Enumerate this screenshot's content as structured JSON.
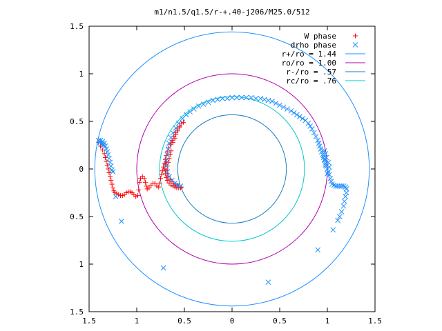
{
  "chart_data": {
    "type": "scatter",
    "title": "m1/n1.5/q1.5/r-+.40-j206/M25.0/512",
    "xlim": [
      -1.5,
      1.5
    ],
    "ylim": [
      -1.5,
      1.5
    ],
    "x_tick_values": [
      -1.5,
      -1,
      -0.5,
      0,
      0.5,
      1,
      1.5
    ],
    "x_tick_labels": [
      "1.5",
      "1",
      "0.5",
      "0",
      "0.5",
      "1",
      "1.5"
    ],
    "y_tick_values": [
      1.5,
      1,
      0.5,
      0,
      -0.5,
      -1,
      -1.5
    ],
    "y_tick_labels": [
      "1.5",
      "1",
      "0.5",
      "0",
      "0.5",
      "1",
      "1.5"
    ],
    "grid": false,
    "legend_position": "top-right",
    "series": [
      {
        "name": "W phase",
        "marker": "plus",
        "color": "#ff0000",
        "points": [
          [
            -1.4,
            0.28
          ],
          [
            -1.38,
            0.24
          ],
          [
            -1.36,
            0.2
          ],
          [
            -1.34,
            0.16
          ],
          [
            -1.33,
            0.12
          ],
          [
            -1.32,
            0.08
          ],
          [
            -1.31,
            0.04
          ],
          [
            -1.3,
            0.0
          ],
          [
            -1.29,
            -0.04
          ],
          [
            -1.28,
            -0.08
          ],
          [
            -1.27,
            -0.12
          ],
          [
            -1.26,
            -0.16
          ],
          [
            -1.25,
            -0.2
          ],
          [
            -1.24,
            -0.23
          ],
          [
            -1.23,
            -0.25
          ],
          [
            -1.21,
            -0.26
          ],
          [
            -1.19,
            -0.27
          ],
          [
            -1.17,
            -0.28
          ],
          [
            -1.15,
            -0.28
          ],
          [
            -1.13,
            -0.27
          ],
          [
            -1.11,
            -0.25
          ],
          [
            -1.09,
            -0.24
          ],
          [
            -1.07,
            -0.24
          ],
          [
            -1.05,
            -0.25
          ],
          [
            -1.03,
            -0.27
          ],
          [
            -1.01,
            -0.29
          ],
          [
            -0.99,
            -0.28
          ],
          [
            -0.98,
            -0.22
          ],
          [
            -0.97,
            -0.14
          ],
          [
            -0.96,
            -0.1
          ],
          [
            -0.94,
            -0.08
          ],
          [
            -0.92,
            -0.1
          ],
          [
            -0.91,
            -0.14
          ],
          [
            -0.9,
            -0.18
          ],
          [
            -0.89,
            -0.21
          ],
          [
            -0.87,
            -0.2
          ],
          [
            -0.85,
            -0.17
          ],
          [
            -0.83,
            -0.15
          ],
          [
            -0.81,
            -0.15
          ],
          [
            -0.79,
            -0.18
          ],
          [
            -0.77,
            -0.19
          ],
          [
            -0.76,
            -0.15
          ],
          [
            -0.75,
            -0.1
          ],
          [
            -0.74,
            -0.06
          ],
          [
            -0.73,
            -0.02
          ],
          [
            -0.72,
            0.02
          ],
          [
            -0.71,
            0.06
          ],
          [
            -0.7,
            0.1
          ],
          [
            -0.69,
            0.14
          ],
          [
            -0.68,
            0.18
          ],
          [
            -0.67,
            0.22
          ],
          [
            -0.65,
            0.26
          ],
          [
            -0.63,
            0.3
          ],
          [
            -0.61,
            0.34
          ],
          [
            -0.59,
            0.38
          ],
          [
            -0.57,
            0.42
          ],
          [
            -0.55,
            0.45
          ],
          [
            -0.53,
            0.48
          ],
          [
            -0.51,
            0.49
          ],
          [
            -0.64,
            0.26
          ],
          [
            -0.62,
            0.28
          ],
          [
            -0.6,
            0.32
          ],
          [
            -0.59,
            0.36
          ],
          [
            -0.57,
            0.4
          ],
          [
            -0.55,
            0.44
          ],
          [
            -0.7,
            -0.02
          ],
          [
            -0.71,
            0.0
          ],
          [
            -0.7,
            0.05
          ],
          [
            -0.69,
            0.08
          ],
          [
            -0.7,
            -0.05
          ],
          [
            -0.69,
            -0.09
          ],
          [
            -0.68,
            -0.12
          ],
          [
            -0.66,
            -0.15
          ],
          [
            -0.64,
            -0.17
          ],
          [
            -0.62,
            -0.18
          ],
          [
            -0.6,
            -0.19
          ],
          [
            -0.58,
            -0.2
          ],
          [
            -0.56,
            -0.2
          ],
          [
            -0.54,
            -0.2
          ],
          [
            -0.53,
            -0.19
          ],
          [
            -0.57,
            -0.17
          ],
          [
            -0.59,
            -0.16
          ],
          [
            -0.61,
            -0.15
          ],
          [
            -0.63,
            -0.13
          ],
          [
            -0.65,
            -0.11
          ],
          [
            -0.67,
            -0.08
          ],
          [
            -0.68,
            -0.05
          ],
          [
            -0.68,
            -0.01
          ],
          [
            -0.68,
            0.03
          ],
          [
            -0.67,
            0.07
          ],
          [
            -0.66,
            0.11
          ],
          [
            -0.65,
            0.15
          ],
          [
            -0.64,
            0.19
          ]
        ]
      },
      {
        "name": "drho phase",
        "marker": "cross",
        "color": "#1e90ff",
        "points": [
          [
            -1.4,
            0.3
          ],
          [
            -1.38,
            0.3
          ],
          [
            -1.36,
            0.29
          ],
          [
            -1.34,
            0.27
          ],
          [
            -1.33,
            0.24
          ],
          [
            -1.32,
            0.21
          ],
          [
            -1.31,
            0.18
          ],
          [
            -1.3,
            0.15
          ],
          [
            -1.29,
            0.11
          ],
          [
            -1.28,
            0.07
          ],
          [
            -1.27,
            0.03
          ],
          [
            -1.26,
            -0.01
          ],
          [
            -1.25,
            -0.03
          ],
          [
            -1.36,
            0.27
          ],
          [
            -1.35,
            0.25
          ],
          [
            -1.39,
            0.28
          ],
          [
            -1.37,
            0.26
          ],
          [
            -1.22,
            -0.29
          ],
          [
            -1.16,
            -0.55
          ],
          [
            -0.72,
            -1.04
          ],
          [
            0.38,
            -1.19
          ],
          [
            0.9,
            -0.85
          ],
          [
            1.06,
            -0.64
          ],
          [
            1.11,
            -0.54
          ],
          [
            1.13,
            -0.5
          ],
          [
            1.15,
            -0.45
          ],
          [
            1.17,
            -0.39
          ],
          [
            1.18,
            -0.34
          ],
          [
            1.19,
            -0.29
          ],
          [
            1.2,
            -0.25
          ],
          [
            1.2,
            -0.21
          ],
          [
            1.19,
            -0.19
          ],
          [
            1.17,
            -0.18
          ],
          [
            1.15,
            -0.18
          ],
          [
            1.13,
            -0.18
          ],
          [
            1.11,
            -0.18
          ],
          [
            1.09,
            -0.18
          ],
          [
            1.07,
            -0.17
          ],
          [
            1.05,
            -0.16
          ],
          [
            1.04,
            -0.13
          ],
          [
            1.03,
            -0.1
          ],
          [
            1.02,
            -0.06
          ],
          [
            1.01,
            -0.03
          ],
          [
            1.0,
            0.0
          ],
          [
            0.99,
            0.03
          ],
          [
            0.98,
            0.06
          ],
          [
            0.97,
            0.09
          ],
          [
            0.96,
            0.12
          ],
          [
            0.95,
            0.15
          ],
          [
            0.94,
            0.18
          ],
          [
            0.93,
            0.21
          ],
          [
            0.92,
            0.24
          ],
          [
            0.91,
            0.27
          ],
          [
            0.9,
            0.3
          ],
          [
            0.88,
            0.34
          ],
          [
            0.86,
            0.38
          ],
          [
            0.84,
            0.42
          ],
          [
            0.82,
            0.45
          ],
          [
            0.8,
            0.48
          ],
          [
            0.77,
            0.51
          ],
          [
            0.74,
            0.53
          ],
          [
            0.71,
            0.55
          ],
          [
            0.68,
            0.57
          ],
          [
            0.65,
            0.59
          ],
          [
            0.62,
            0.61
          ],
          [
            0.58,
            0.63
          ],
          [
            0.54,
            0.65
          ],
          [
            0.5,
            0.67
          ],
          [
            0.46,
            0.69
          ],
          [
            0.42,
            0.71
          ],
          [
            0.38,
            0.72
          ],
          [
            0.34,
            0.73
          ],
          [
            0.3,
            0.74
          ],
          [
            0.25,
            0.74
          ],
          [
            0.2,
            0.75
          ],
          [
            0.15,
            0.75
          ],
          [
            0.1,
            0.75
          ],
          [
            0.05,
            0.75
          ],
          [
            0.0,
            0.75
          ],
          [
            -0.05,
            0.74
          ],
          [
            -0.1,
            0.74
          ],
          [
            -0.15,
            0.73
          ],
          [
            -0.2,
            0.72
          ],
          [
            -0.25,
            0.7
          ],
          [
            -0.3,
            0.68
          ],
          [
            -0.35,
            0.66
          ],
          [
            -0.4,
            0.63
          ],
          [
            -0.44,
            0.6
          ],
          [
            -0.48,
            0.57
          ],
          [
            -0.52,
            0.53
          ],
          [
            -0.56,
            0.48
          ],
          [
            -0.59,
            0.43
          ],
          [
            -0.62,
            0.38
          ],
          [
            -0.64,
            0.33
          ],
          [
            -0.66,
            0.27
          ],
          [
            -0.67,
            0.21
          ],
          [
            -0.68,
            0.15
          ],
          [
            -0.69,
            0.09
          ],
          [
            -0.69,
            0.03
          ],
          [
            -0.68,
            -0.03
          ],
          [
            -0.66,
            -0.08
          ],
          [
            -0.63,
            -0.12
          ],
          [
            -0.6,
            -0.15
          ],
          [
            -0.57,
            -0.17
          ],
          [
            -0.54,
            -0.18
          ],
          [
            0.97,
            0.1
          ],
          [
            0.96,
            0.14
          ],
          [
            0.98,
            0.04
          ],
          [
            1.0,
            -0.05
          ],
          [
            1.02,
            0.02
          ],
          [
            1.01,
            0.07
          ],
          [
            0.99,
            0.12
          ],
          [
            0.98,
            0.16
          ],
          [
            0.97,
            0.19
          ]
        ]
      },
      {
        "name": "r+/ro = 1.44",
        "type": "circle",
        "radius": 1.44,
        "color": "#1e90ff"
      },
      {
        "name": "ro/ro = 1.00",
        "type": "circle",
        "radius": 1.0,
        "color": "#b000b0"
      },
      {
        "name": "r-/ro = .57",
        "type": "circle",
        "radius": 0.57,
        "color": "#1e7fc0"
      },
      {
        "name": "rc/ro = .76",
        "type": "circle",
        "radius": 0.76,
        "color": "#00c8c8"
      }
    ]
  }
}
